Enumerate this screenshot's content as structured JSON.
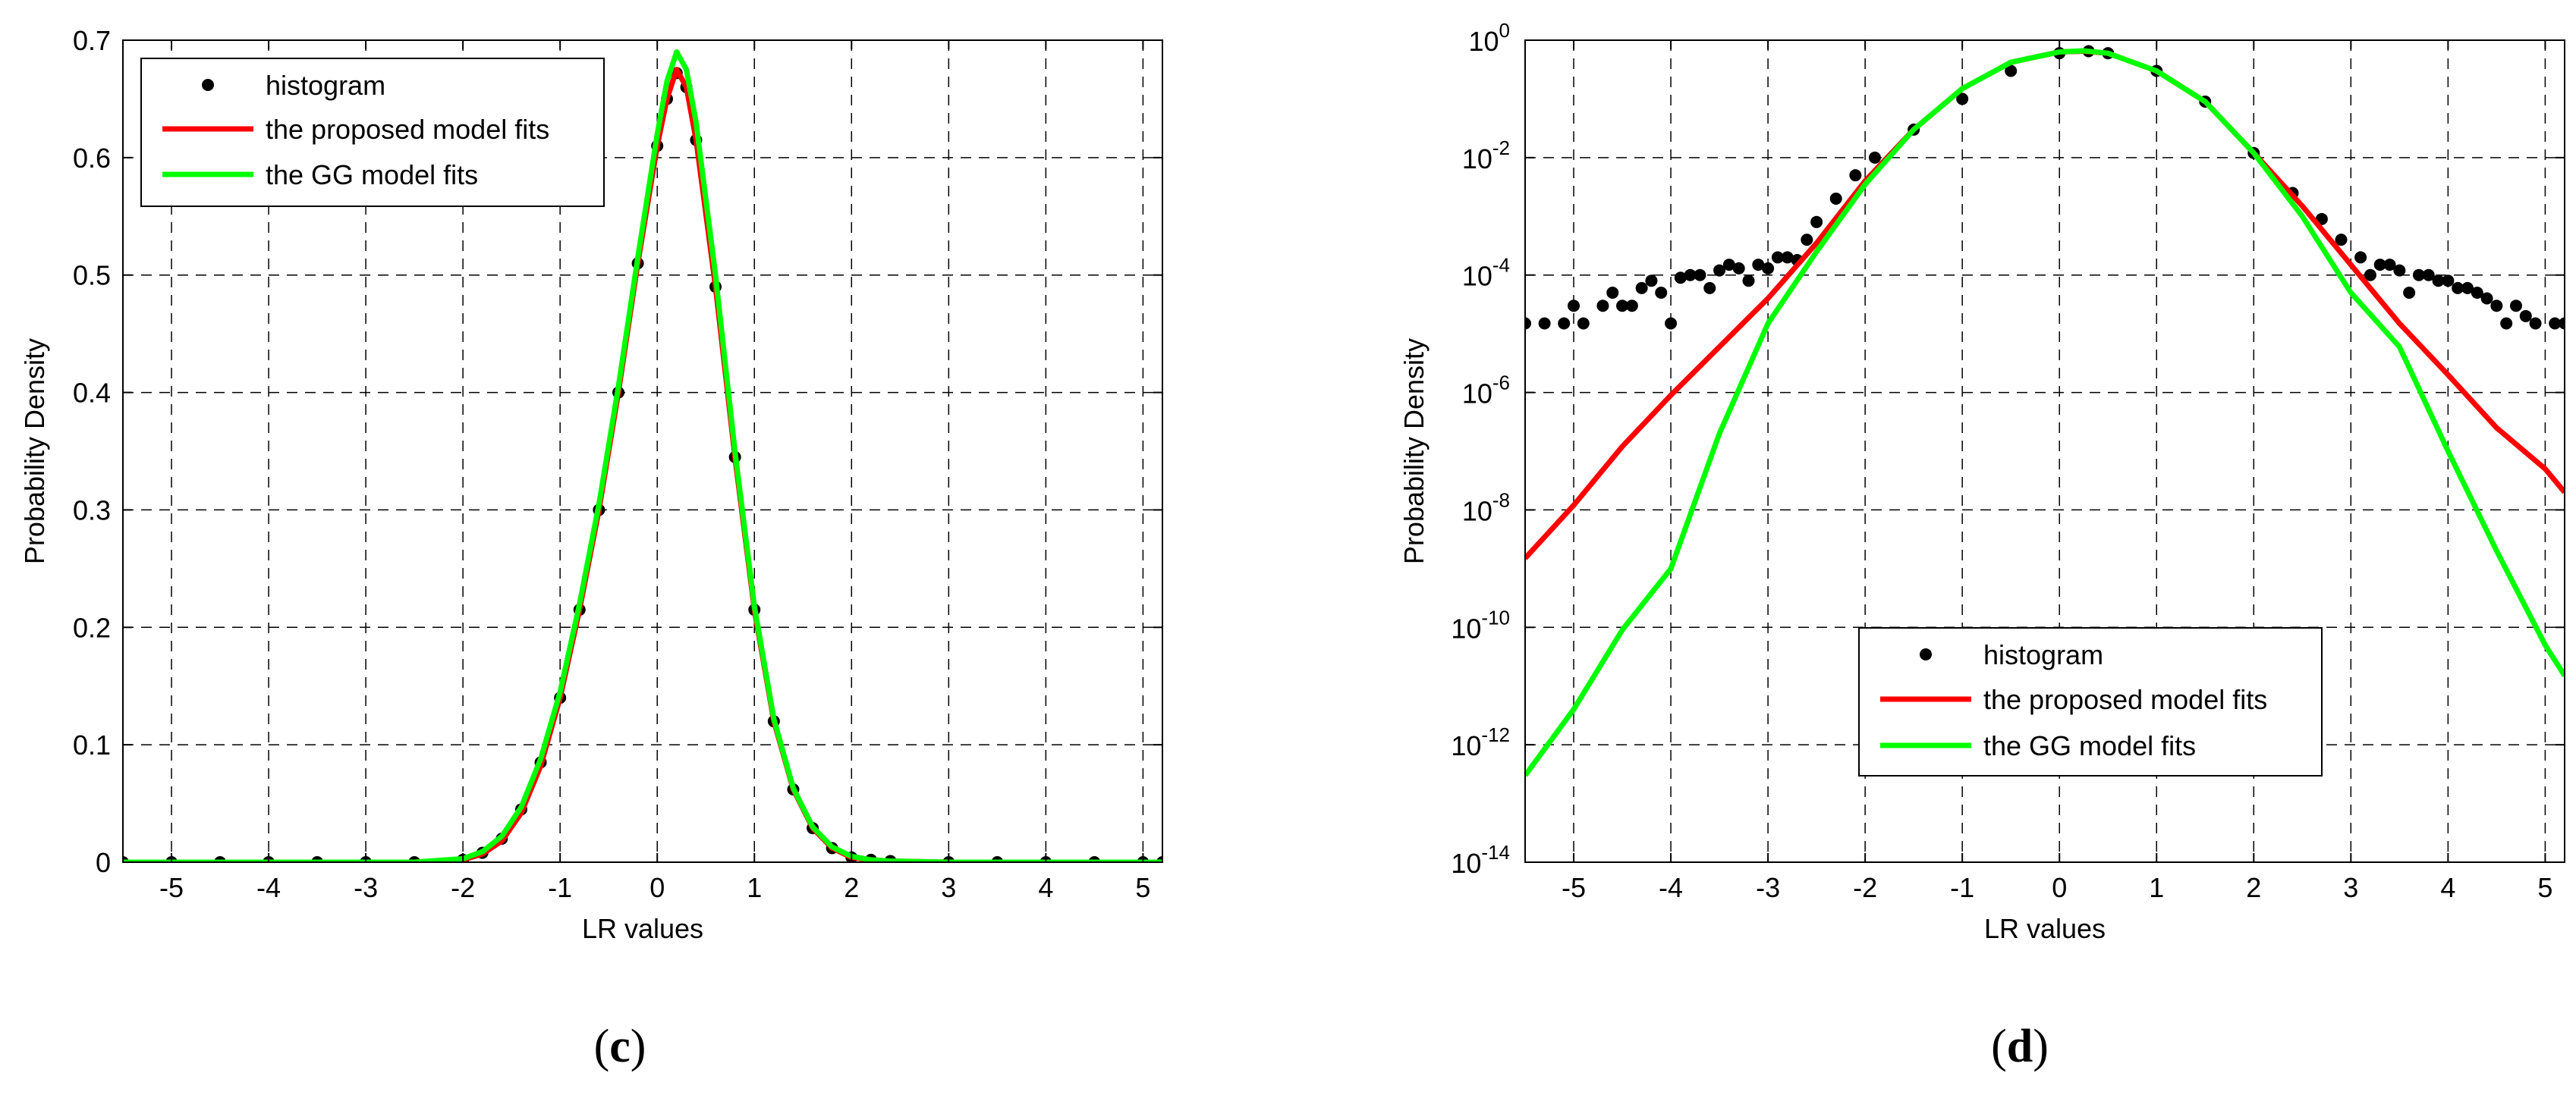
{
  "chart_data": [
    {
      "type": "line",
      "panel_label": "c",
      "xlabel": "LR values",
      "ylabel": "Probability Density",
      "xlim": [
        -5.5,
        5.2
      ],
      "ylim": [
        0,
        0.7
      ],
      "yscale": "linear",
      "xticks": [
        -5,
        -4,
        -3,
        -2,
        -1,
        0,
        1,
        2,
        3,
        4,
        5
      ],
      "yticks": [
        0,
        0.1,
        0.2,
        0.3,
        0.4,
        0.5,
        0.6,
        0.7
      ],
      "grid": true,
      "legend_position": "top-left",
      "series": [
        {
          "name": "histogram",
          "style": "markers",
          "color": "#000000",
          "x": [
            -5.5,
            -5.0,
            -4.5,
            -4.0,
            -3.5,
            -3.0,
            -2.5,
            -2.0,
            -1.8,
            -1.6,
            -1.4,
            -1.2,
            -1.0,
            -0.8,
            -0.6,
            -0.4,
            -0.2,
            0.0,
            0.1,
            0.2,
            0.3,
            0.4,
            0.6,
            0.8,
            1.0,
            1.2,
            1.4,
            1.6,
            1.8,
            2.0,
            2.2,
            2.4,
            3.0,
            3.5,
            4.0,
            4.5,
            5.0,
            5.2
          ],
          "y": [
            0,
            0,
            0,
            0,
            0,
            0,
            0,
            0.002,
            0.008,
            0.02,
            0.045,
            0.085,
            0.14,
            0.215,
            0.3,
            0.4,
            0.51,
            0.61,
            0.65,
            0.672,
            0.66,
            0.615,
            0.49,
            0.345,
            0.215,
            0.12,
            0.062,
            0.029,
            0.012,
            0.004,
            0.002,
            0.001,
            0,
            0,
            0,
            0,
            0,
            0
          ]
        },
        {
          "name": "the proposed model fits",
          "style": "line",
          "color": "#ff0000",
          "x": [
            -5.5,
            -4.5,
            -3.5,
            -2.5,
            -2.0,
            -1.8,
            -1.6,
            -1.4,
            -1.2,
            -1.0,
            -0.8,
            -0.6,
            -0.4,
            -0.2,
            0.0,
            0.1,
            0.2,
            0.3,
            0.4,
            0.6,
            0.8,
            1.0,
            1.2,
            1.4,
            1.6,
            1.8,
            2.0,
            2.2,
            2.4,
            3.0,
            4.0,
            5.2
          ],
          "y": [
            0,
            0,
            0,
            0,
            0.002,
            0.007,
            0.018,
            0.042,
            0.082,
            0.14,
            0.215,
            0.3,
            0.4,
            0.51,
            0.61,
            0.65,
            0.675,
            0.66,
            0.615,
            0.49,
            0.345,
            0.215,
            0.12,
            0.062,
            0.029,
            0.012,
            0.004,
            0.002,
            0.001,
            0,
            0,
            0
          ]
        },
        {
          "name": "the GG model fits",
          "style": "line",
          "color": "#00ff00",
          "x": [
            -5.5,
            -4.5,
            -3.5,
            -2.5,
            -2.0,
            -1.8,
            -1.6,
            -1.4,
            -1.2,
            -1.0,
            -0.8,
            -0.6,
            -0.4,
            -0.2,
            0.0,
            0.1,
            0.2,
            0.3,
            0.4,
            0.6,
            0.8,
            1.0,
            1.2,
            1.4,
            1.6,
            1.8,
            2.0,
            2.2,
            2.4,
            3.0,
            4.0,
            5.2
          ],
          "y": [
            0,
            0,
            0,
            0,
            0.003,
            0.009,
            0.022,
            0.047,
            0.088,
            0.145,
            0.22,
            0.305,
            0.405,
            0.515,
            0.62,
            0.665,
            0.69,
            0.675,
            0.63,
            0.5,
            0.35,
            0.218,
            0.122,
            0.063,
            0.03,
            0.013,
            0.005,
            0.002,
            0.001,
            0,
            0,
            0
          ]
        }
      ]
    },
    {
      "type": "line",
      "panel_label": "d",
      "xlabel": "LR values",
      "ylabel": "Probability Density",
      "xlim": [
        -5.5,
        5.2
      ],
      "ylim": [
        1e-14,
        1
      ],
      "yscale": "log",
      "xticks": [
        -5,
        -4,
        -3,
        -2,
        -1,
        0,
        1,
        2,
        3,
        4,
        5
      ],
      "ytick_labels": [
        {
          "base": "10",
          "exp": "0",
          "value": 1
        },
        {
          "base": "10",
          "exp": "-2",
          "value": 0.01
        },
        {
          "base": "10",
          "exp": "-4",
          "value": 0.0001
        },
        {
          "base": "10",
          "exp": "-6",
          "value": 1e-06
        },
        {
          "base": "10",
          "exp": "-8",
          "value": 1e-08
        },
        {
          "base": "10",
          "exp": "-10",
          "value": 1e-10
        },
        {
          "base": "10",
          "exp": "-12",
          "value": 1e-12
        },
        {
          "base": "10",
          "exp": "-14",
          "value": 1e-14
        }
      ],
      "grid": true,
      "legend_position": "lower-center",
      "series": [
        {
          "name": "histogram",
          "style": "markers",
          "color": "#000000",
          "x": [
            -5.5,
            -5.3,
            -5.1,
            -4.9,
            -4.7,
            -4.5,
            -4.3,
            -4.1,
            -3.9,
            -3.7,
            -3.5,
            -3.3,
            -3.1,
            -2.9,
            -2.7,
            -2.5,
            -2.3,
            -2.1,
            -1.9,
            -1.5,
            -1.0,
            -0.5,
            0.0,
            0.3,
            0.5,
            1.0,
            1.5,
            2.0,
            2.4,
            2.7,
            2.9,
            3.1,
            3.3,
            3.5,
            3.7,
            3.9,
            4.1,
            4.3,
            4.5,
            4.7,
            4.9,
            5.1,
            -5.0,
            -4.6,
            -4.2,
            -3.8,
            -3.4,
            -3.0,
            -2.6,
            -4.4,
            -4.0,
            -3.6,
            -3.2,
            -2.8,
            3.2,
            3.6,
            4.0,
            4.4,
            4.8,
            3.4,
            3.8,
            4.2,
            4.6,
            5.2
          ],
          "y": [
            1.5e-05,
            1.5e-05,
            1.5e-05,
            1.5e-05,
            3e-05,
            3e-05,
            6e-05,
            5e-05,
            9e-05,
            0.0001,
            0.00012,
            0.00013,
            0.00015,
            0.0002,
            0.00018,
            0.0008,
            0.002,
            0.005,
            0.01,
            0.03,
            0.1,
            0.3,
            0.6,
            0.65,
            0.6,
            0.3,
            0.09,
            0.012,
            0.0025,
            0.0009,
            0.0004,
            0.0002,
            0.00015,
            0.00012,
            0.0001,
            8e-05,
            6e-05,
            5e-05,
            3e-05,
            3e-05,
            1.5e-05,
            1.5e-05,
            3e-05,
            5e-05,
            8e-05,
            0.0001,
            0.00015,
            0.00013,
            0.0004,
            3e-05,
            1.5e-05,
            6e-05,
            8e-05,
            0.0002,
            0.0001,
            5e-05,
            8e-05,
            4e-05,
            2e-05,
            0.00015,
            0.0001,
            6e-05,
            1.5e-05,
            1.5e-05
          ]
        },
        {
          "name": "the proposed model fits",
          "style": "line",
          "color": "#ff0000",
          "x": [
            -5.5,
            -5.0,
            -4.5,
            -4.0,
            -3.5,
            -3.0,
            -2.5,
            -2.0,
            -1.5,
            -1.0,
            -0.5,
            0.0,
            0.25,
            0.5,
            1.0,
            1.5,
            2.0,
            2.5,
            3.0,
            3.5,
            4.0,
            4.5,
            5.0,
            5.2
          ],
          "y": [
            1.5e-09,
            1.2e-08,
            1.2e-07,
            9e-07,
            6e-06,
            4e-05,
            0.00035,
            0.004,
            0.03,
            0.15,
            0.42,
            0.63,
            0.65,
            0.6,
            0.3,
            0.09,
            0.012,
            0.0015,
            0.00015,
            1.5e-05,
            2e-06,
            2.5e-07,
            5e-08,
            2e-08
          ]
        },
        {
          "name": "the GG model fits",
          "style": "line",
          "color": "#00ff00",
          "x": [
            -5.5,
            -5.0,
            -4.5,
            -4.0,
            -3.5,
            -3.0,
            -2.5,
            -2.0,
            -1.5,
            -1.0,
            -0.5,
            0.0,
            0.25,
            0.5,
            1.0,
            1.5,
            2.0,
            2.5,
            3.0,
            3.5,
            4.0,
            4.5,
            5.0,
            5.2
          ],
          "y": [
            3e-13,
            4e-12,
            9e-11,
            1e-09,
            2e-07,
            1.5e-05,
            0.00025,
            0.0035,
            0.03,
            0.15,
            0.42,
            0.63,
            0.66,
            0.6,
            0.3,
            0.09,
            0.012,
            0.001,
            5e-05,
            6e-06,
            1e-07,
            2e-09,
            5e-11,
            1.5e-11
          ]
        }
      ]
    }
  ]
}
